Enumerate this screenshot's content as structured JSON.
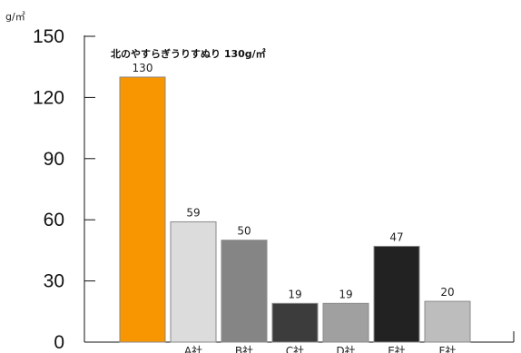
{
  "chart_data": {
    "type": "bar",
    "unit_label": "g/㎡",
    "title": "北のやすらぎうりすぬり 130g/㎡",
    "ylim": [
      0,
      150
    ],
    "yticks": [
      0,
      30,
      60,
      90,
      120,
      150
    ],
    "grid": false,
    "categories": [
      "",
      "A社",
      "B社",
      "C社",
      "D社",
      "E社",
      "F社"
    ],
    "values": [
      130,
      59,
      50,
      19,
      19,
      47,
      20
    ],
    "colors": [
      "#f79600",
      "#dcdcdc",
      "#858585",
      "#3c3c3c",
      "#a0a0a0",
      "#222222",
      "#bdbdbd"
    ]
  }
}
